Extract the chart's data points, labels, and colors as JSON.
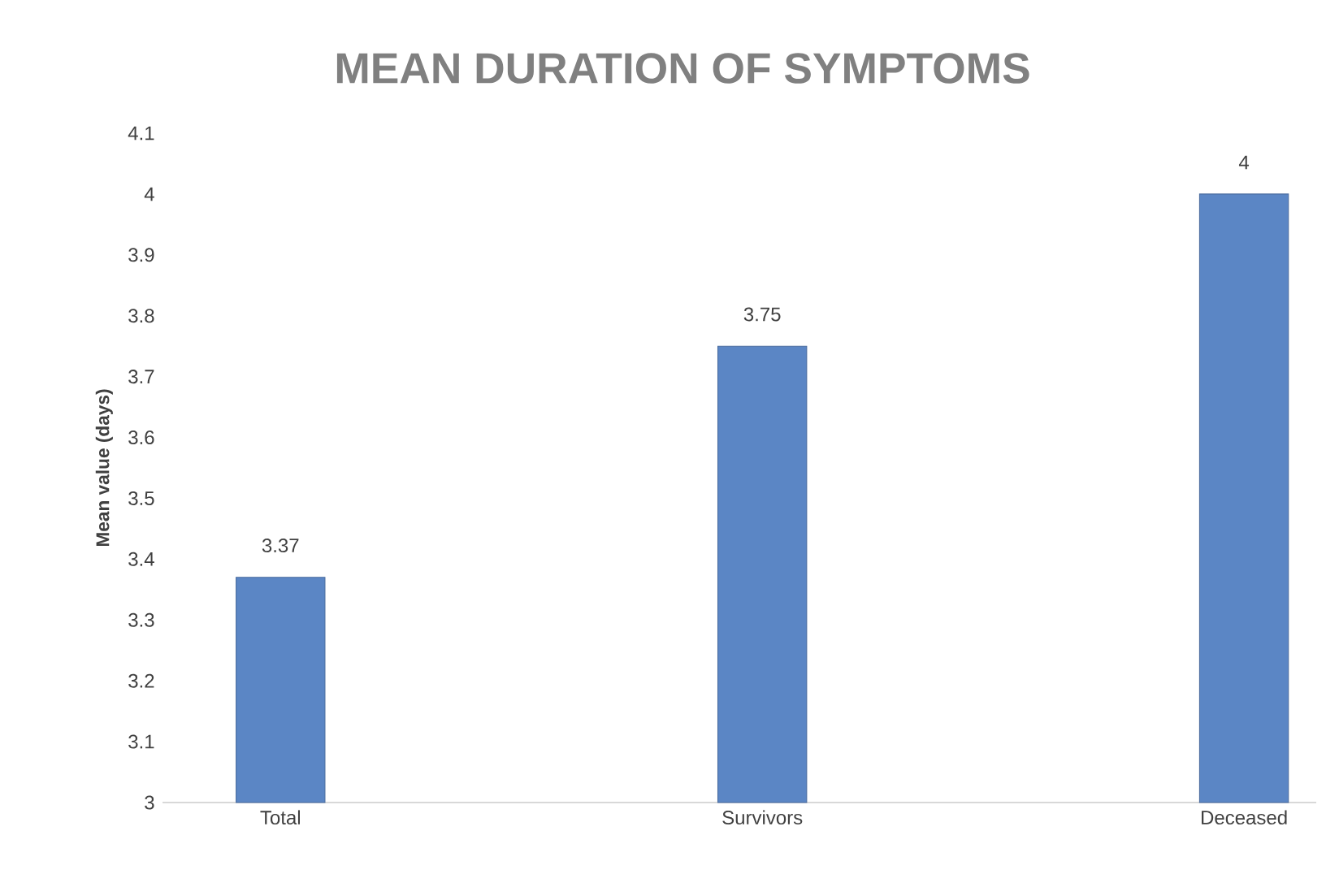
{
  "chart_data": {
    "type": "bar",
    "title": "MEAN DURATION OF SYMPTOMS",
    "ylabel": "Mean value (days)",
    "categories": [
      "Total",
      "Survivors",
      "Deceased"
    ],
    "values": [
      3.37,
      3.75,
      4
    ],
    "color": "#5b86c5",
    "ylim": [
      3,
      4.1
    ],
    "yticks": [
      3,
      3.1,
      3.2,
      3.3,
      3.4,
      3.5,
      3.6,
      3.7,
      3.8,
      3.9,
      4,
      4.1
    ],
    "data_labels": true
  }
}
